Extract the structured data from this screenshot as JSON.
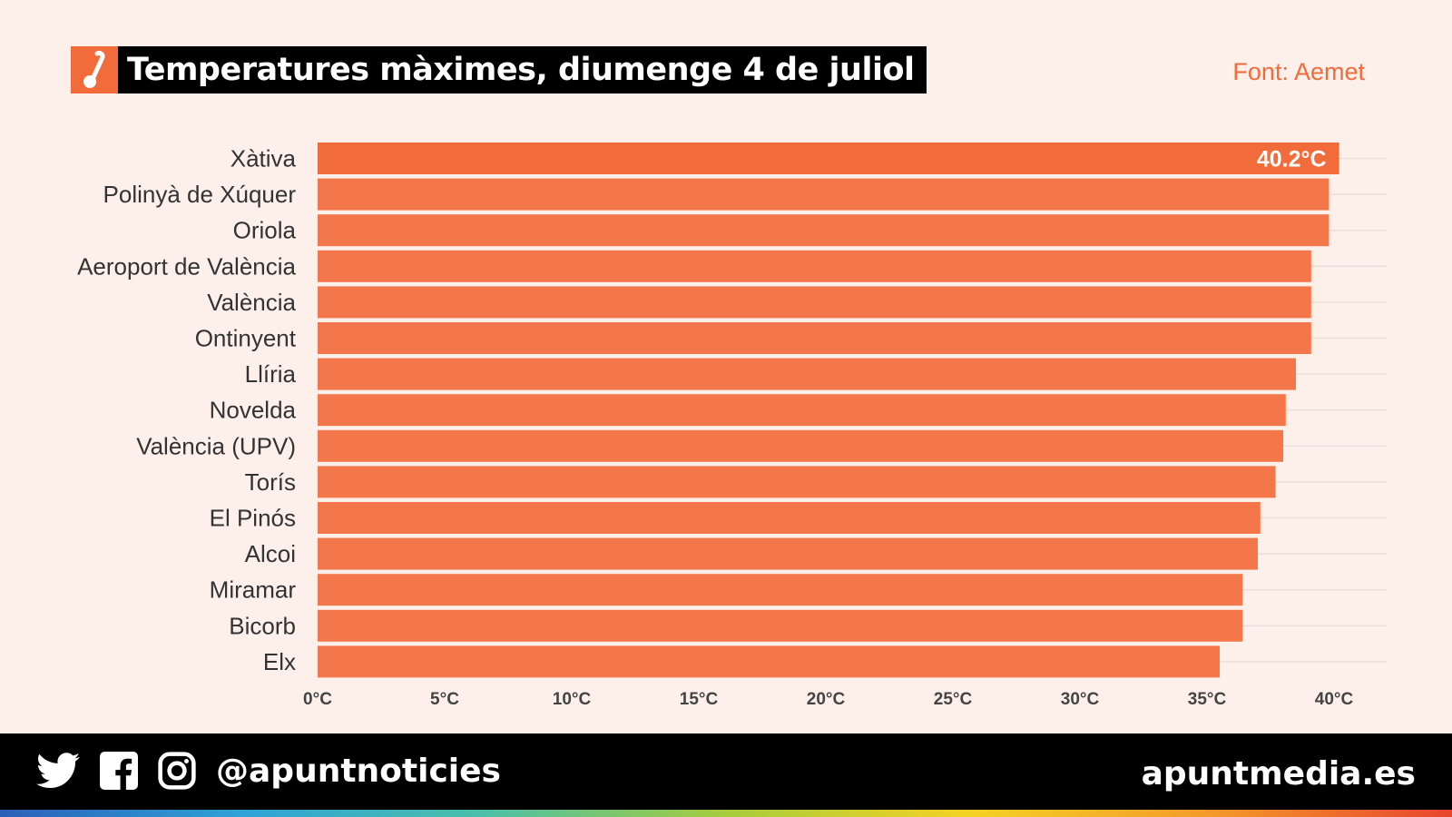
{
  "header": {
    "title": "Temperatures màximes, diumenge 4 de juliol",
    "icon": "thermometer-icon",
    "source": "Font: Aemet"
  },
  "chart_data": {
    "type": "bar",
    "orientation": "horizontal",
    "title": "Temperatures màximes, diumenge 4 de juliol",
    "categories": [
      "Xàtiva",
      "Polinyà de Xúquer",
      "Oriola",
      "Aeroport de València",
      "València",
      "Ontinyent",
      "Llíria",
      "Novelda",
      "València (UPV)",
      "Torís",
      "El Pinós",
      "Alcoi",
      "Miramar",
      "Bicorb",
      "Elx"
    ],
    "values": [
      40.2,
      39.8,
      39.8,
      39.1,
      39.1,
      39.1,
      38.5,
      38.1,
      38.0,
      37.7,
      37.1,
      37.0,
      36.4,
      36.4,
      35.5
    ],
    "data_labels": [
      {
        "category": "Xàtiva",
        "text": "40.2°C"
      }
    ],
    "xlim": [
      0,
      42
    ],
    "ticks": [
      0,
      5,
      10,
      15,
      20,
      25,
      30,
      35,
      40
    ],
    "tick_labels": [
      "0°C",
      "5°C",
      "10°C",
      "15°C",
      "20°C",
      "25°C",
      "30°C",
      "35°C",
      "40°C"
    ],
    "colors": {
      "bar": "#f4774b",
      "highlight": "#f26b3a"
    },
    "grid": true
  },
  "footer": {
    "handle": "@apuntnoticies",
    "site": "apuntmedia.es",
    "icons": [
      "twitter-icon",
      "facebook-icon",
      "instagram-icon"
    ]
  }
}
